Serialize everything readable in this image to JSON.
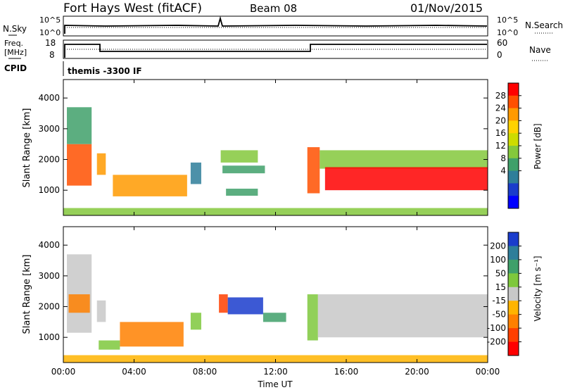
{
  "header": {
    "station": "Fort Hays West (fitACF)",
    "beam": "Beam 08",
    "date": "01/Nov/2015"
  },
  "noise_panel": {
    "left_label": "N.Sky",
    "right_label": "N.Search",
    "left_ticks": [
      "10^5",
      "10^0"
    ],
    "right_ticks": [
      "10^5",
      "10^0"
    ]
  },
  "freq_panel": {
    "left_label_1": "Freq.",
    "left_label_2": "[MHz]",
    "right_label": "Nave",
    "left_ticks": [
      "18",
      "8"
    ],
    "right_ticks": [
      "60",
      "0"
    ]
  },
  "cpid_panel": {
    "label": "CPID",
    "text": "themis -3300 IF"
  },
  "chart_data": [
    {
      "type": "heatmap",
      "title": "Power",
      "xlabel": "Time UT",
      "ylabel": "Slant Range [km]",
      "x_ticks": [
        "00:00",
        "04:00",
        "08:00",
        "12:00",
        "16:00",
        "20:00",
        "00:00"
      ],
      "y_ticks": [
        "1000",
        "2000",
        "3000",
        "4000"
      ],
      "xlim": [
        0,
        24
      ],
      "ylim": [
        180,
        4600
      ],
      "colorbar": {
        "label": "Power [dB]",
        "ticks": [
          "28",
          "24",
          "20",
          "16",
          "12",
          "8",
          "4"
        ],
        "colors": [
          "#ff0000",
          "#ff5000",
          "#ff9a00",
          "#ffd200",
          "#cddc00",
          "#84c83c",
          "#3fa06a",
          "#2e7e9a",
          "#1a3ccc",
          "#0000ff"
        ]
      },
      "regions": [
        {
          "t0": 0.2,
          "t1": 1.6,
          "r0": 1150,
          "r1": 2500,
          "color": "#ff5000"
        },
        {
          "t0": 0.2,
          "t1": 1.6,
          "r0": 2500,
          "r1": 3700,
          "color": "#3fa06a"
        },
        {
          "t0": 1.9,
          "t1": 2.4,
          "r0": 1500,
          "r1": 2200,
          "color": "#ff9a00"
        },
        {
          "t0": 2.8,
          "t1": 7.0,
          "r0": 800,
          "r1": 1500,
          "color": "#ff9a00"
        },
        {
          "t0": 7.2,
          "t1": 7.8,
          "r0": 1200,
          "r1": 1900,
          "color": "#2e7e9a"
        },
        {
          "t0": 8.9,
          "t1": 11.0,
          "r0": 1900,
          "r1": 2300,
          "color": "#84c83c"
        },
        {
          "t0": 9.0,
          "t1": 11.4,
          "r0": 1550,
          "r1": 1800,
          "color": "#3fa06a"
        },
        {
          "t0": 9.2,
          "t1": 11.0,
          "r0": 820,
          "r1": 1050,
          "color": "#3fa06a"
        },
        {
          "t0": 13.8,
          "t1": 14.5,
          "r0": 900,
          "r1": 2400,
          "color": "#ff5000"
        },
        {
          "t0": 14.5,
          "t1": 24.0,
          "r0": 1700,
          "r1": 2300,
          "color": "#84c83c"
        },
        {
          "t0": 14.8,
          "t1": 24.0,
          "r0": 1000,
          "r1": 1750,
          "color": "#ff0000"
        },
        {
          "t0": 0.0,
          "t1": 24.0,
          "r0": 180,
          "r1": 420,
          "color": "#84c83c"
        }
      ]
    },
    {
      "type": "heatmap",
      "title": "Velocity",
      "xlabel": "Time UT",
      "ylabel": "Slant Range [km]",
      "x_ticks": [
        "00:00",
        "04:00",
        "08:00",
        "12:00",
        "16:00",
        "20:00",
        "00:00"
      ],
      "y_ticks": [
        "1000",
        "2000",
        "3000",
        "4000"
      ],
      "xlim": [
        0,
        24
      ],
      "ylim": [
        180,
        4600
      ],
      "colorbar": {
        "label": "Velocity [m s⁻¹]",
        "ticks": [
          "200",
          "100",
          "50",
          "15",
          "-15",
          "-50",
          "-100",
          "-200"
        ],
        "colors": [
          "#1a3ccc",
          "#2e7e9a",
          "#3fa06a",
          "#7ec83c",
          "#c8c8c8",
          "#ffb400",
          "#ff8000",
          "#ff4000",
          "#ff0000"
        ]
      },
      "regions": [
        {
          "t0": 0.2,
          "t1": 1.6,
          "r0": 1150,
          "r1": 3700,
          "color": "#c8c8c8"
        },
        {
          "t0": 0.3,
          "t1": 1.5,
          "r0": 1800,
          "r1": 2400,
          "color": "#ff8000"
        },
        {
          "t0": 1.9,
          "t1": 2.4,
          "r0": 1500,
          "r1": 2200,
          "color": "#c8c8c8"
        },
        {
          "t0": 2.0,
          "t1": 3.2,
          "r0": 600,
          "r1": 900,
          "color": "#7ec83c"
        },
        {
          "t0": 3.2,
          "t1": 6.8,
          "r0": 700,
          "r1": 1500,
          "color": "#ff8000"
        },
        {
          "t0": 7.2,
          "t1": 7.8,
          "r0": 1250,
          "r1": 1800,
          "color": "#7ec83c"
        },
        {
          "t0": 8.8,
          "t1": 9.3,
          "r0": 1800,
          "r1": 2400,
          "color": "#ff4000"
        },
        {
          "t0": 9.3,
          "t1": 11.3,
          "r0": 1750,
          "r1": 2300,
          "color": "#1a3ccc"
        },
        {
          "t0": 11.3,
          "t1": 12.6,
          "r0": 1500,
          "r1": 1800,
          "color": "#3fa06a"
        },
        {
          "t0": 13.8,
          "t1": 14.4,
          "r0": 900,
          "r1": 2400,
          "color": "#7ec83c"
        },
        {
          "t0": 14.4,
          "t1": 24.0,
          "r0": 1000,
          "r1": 2400,
          "color": "#c8c8c8"
        },
        {
          "t0": 0.0,
          "t1": 24.0,
          "r0": 180,
          "r1": 420,
          "color": "#ffb400"
        }
      ]
    }
  ]
}
